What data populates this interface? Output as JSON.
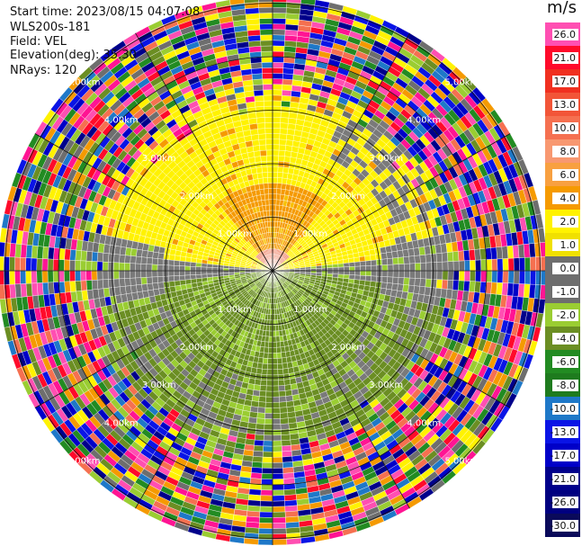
{
  "info": {
    "start_time": "Start time: 2023/08/15 04:07:08",
    "site": "WLS200s-181",
    "field": "Field: VEL",
    "elevation": "Elevation(deg): 35.30",
    "nrays": "NRays: 120"
  },
  "colorbar": {
    "unit": "m/s",
    "ticks": [
      "26.0",
      "21.0",
      "17.0",
      "13.0",
      "10.0",
      "8.0",
      "6.0",
      "4.0",
      "2.0",
      "1.0",
      "0.0",
      "-1.0",
      "-2.0",
      "-4.0",
      "-6.0",
      "-8.0",
      "-10.0",
      "-13.0",
      "-17.0",
      "-21.0",
      "-26.0",
      "-30.0"
    ],
    "colors": [
      "#ff4fb2",
      "#ff0a2a",
      "#f03020",
      "#f25538",
      "#f57050",
      "#f89870",
      "#f8a040",
      "#f59a00",
      "#fff200",
      "#f0e000",
      "#6e6e6e",
      "#6e6e6e",
      "#9acd32",
      "#6b8e23",
      "#228b22",
      "#1e7b1e",
      "#1e78c8",
      "#0a14e6",
      "#0000c8",
      "#00008b",
      "#000080",
      "#0a0a5a"
    ]
  },
  "range_labels": [
    "1.00km",
    "2.00km",
    "3.00km",
    "4.00km",
    "5.00km"
  ],
  "chart_data": {
    "type": "heatmap",
    "title": "",
    "field": "VEL",
    "units": "m/s",
    "colorbar_range": [
      -30.0,
      26.0
    ],
    "range_rings_km": [
      1.0,
      2.0,
      3.0,
      4.0,
      5.0
    ],
    "n_rays": 120,
    "elevation_deg": 35.3,
    "regions": [
      {
        "sector": "north (upper half), range 0-2.5 km",
        "velocity_ms": [
          2.0,
          6.0
        ],
        "color": "yellow/orange"
      },
      {
        "sector": "near center north, range <0.5 km",
        "velocity_ms": [
          8.0,
          10.0
        ],
        "color": "salmon"
      },
      {
        "sector": "east-west band near horizontal",
        "velocity_ms": [
          -1.0,
          1.0
        ],
        "color": "gray"
      },
      {
        "sector": "south (lower half), range 0-2.5 km",
        "velocity_ms": [
          -6.0,
          -2.0
        ],
        "color": "green"
      },
      {
        "sector": "beyond ~3 km, all azimuths",
        "velocity_ms": "noise",
        "color": "mixed"
      }
    ]
  }
}
